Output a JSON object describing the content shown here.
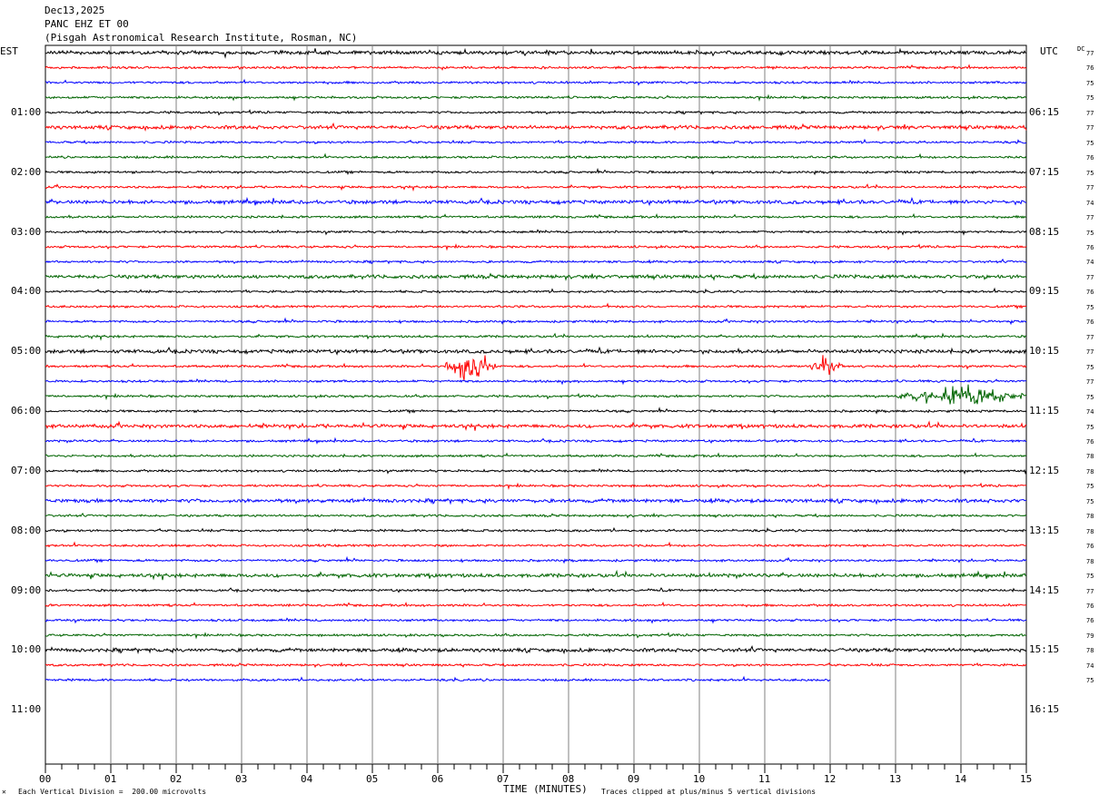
{
  "header": {
    "date": "Dec13,2025",
    "station": "PANC EHZ ET 00",
    "institute": "(Pisgah Astronomical Research Institute, Rosman, NC)"
  },
  "left_zone": "EST",
  "right_zone": "UTC",
  "dc_label": "DC",
  "left_hour_labels": [
    "01:00",
    "02:00",
    "03:00",
    "04:00",
    "05:00",
    "06:00",
    "07:00",
    "08:00",
    "09:00",
    "10:00",
    "11:00"
  ],
  "right_hour_labels": [
    "06:15",
    "07:15",
    "08:15",
    "09:15",
    "10:15",
    "11:15",
    "12:15",
    "13:15",
    "14:15",
    "15:15",
    "16:15"
  ],
  "x_tick_labels": [
    "00",
    "01",
    "02",
    "03",
    "04",
    "05",
    "06",
    "07",
    "08",
    "09",
    "10",
    "11",
    "12",
    "13",
    "14",
    "15"
  ],
  "x_axis_title": "TIME (MINUTES)",
  "footer": {
    "vertical_division": "Each Vertical Division =  200.00 microvolts",
    "clipping": "Traces clipped at plus/minus 5 vertical divisions"
  },
  "colors": {
    "trace_cycle": [
      "#000000",
      "#ff0000",
      "#0000ff",
      "#006400"
    ],
    "grid": "#808080"
  },
  "chart_data": {
    "type": "line",
    "title": "PANC EHZ ET 00",
    "xlabel": "TIME (MINUTES)",
    "xlim": [
      0,
      15
    ],
    "minutes_per_trace": 15,
    "traces_per_hour": 4,
    "dc_offsets": [
      77,
      76,
      75,
      75,
      77,
      77,
      75,
      76,
      75,
      77,
      74,
      77,
      75,
      76,
      74,
      77,
      76,
      75,
      76,
      77,
      77,
      75,
      77,
      75,
      74,
      75,
      76,
      78,
      78,
      75,
      75,
      78,
      78,
      76,
      78,
      75,
      77,
      76,
      76,
      79,
      78,
      74,
      75
    ],
    "last_trace_end_minute": 12,
    "events": [
      {
        "trace": 21,
        "start_minute": 6.1,
        "end_minute": 6.9,
        "peak_divisions": 3.5
      },
      {
        "trace": 21,
        "start_minute": 11.7,
        "end_minute": 12.2,
        "peak_divisions": 2
      },
      {
        "trace": 23,
        "start_minute": 13.0,
        "end_minute": 15.0,
        "peak_divisions": 2
      }
    ]
  }
}
